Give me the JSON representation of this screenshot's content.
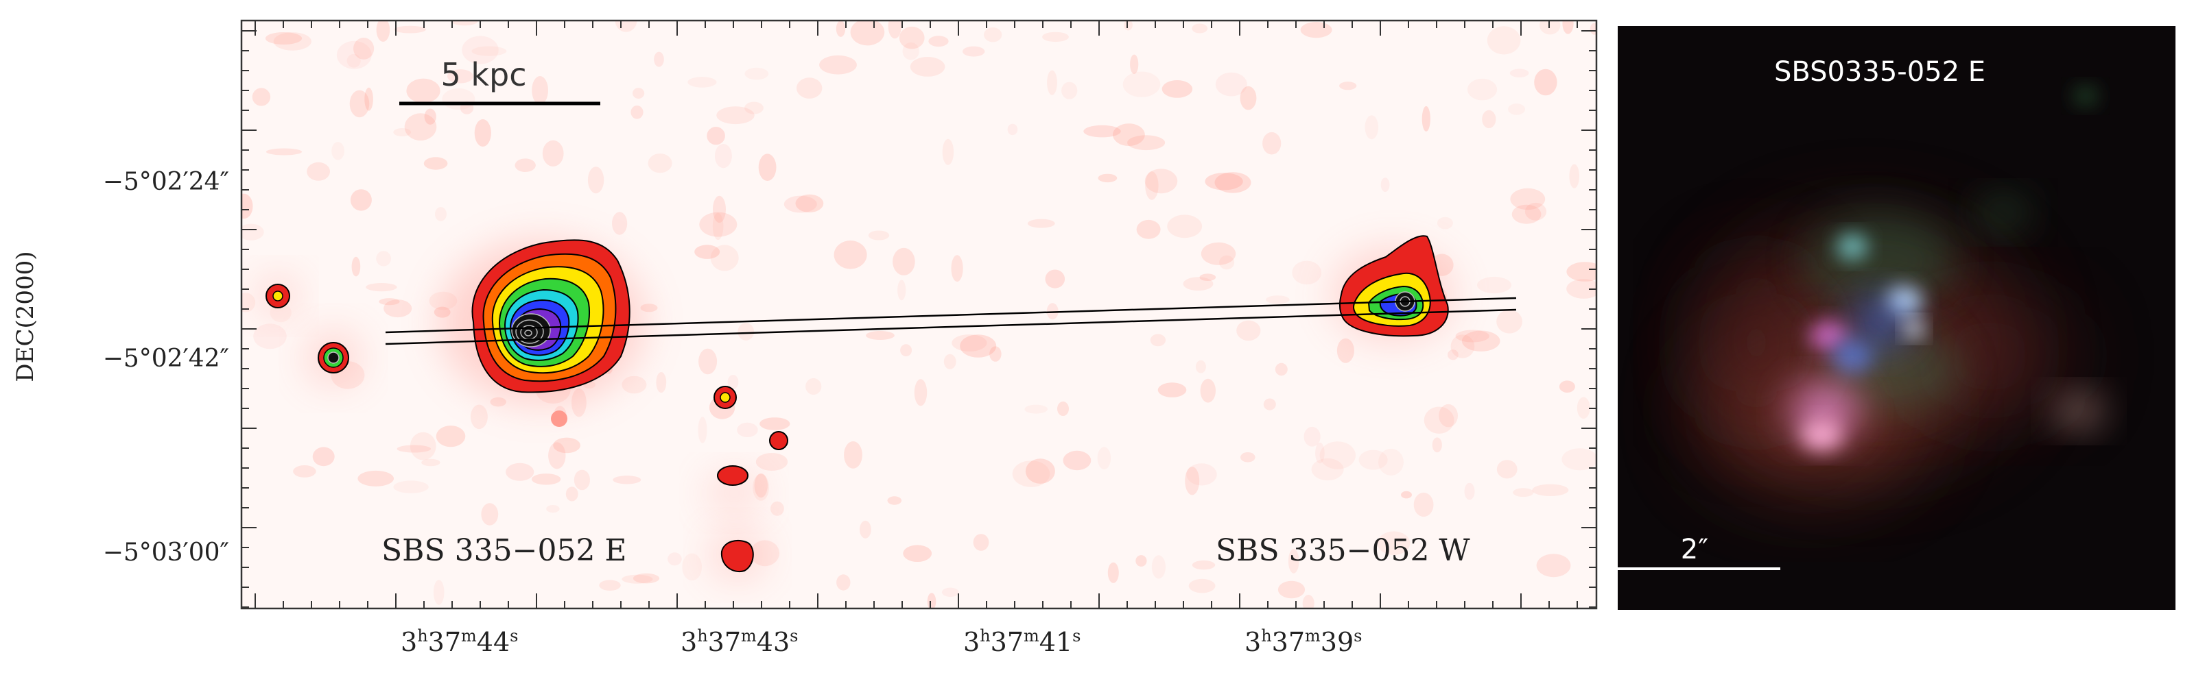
{
  "left_panel": {
    "scale_bar_label": "5 kpc",
    "y_axis_label": "DEC(2000)",
    "y_ticks": [
      "−5°02′24″",
      "−5°02′42″",
      "−5°03′00″"
    ],
    "x_ticks": [
      {
        "h": "3",
        "m": "37",
        "s": "44"
      },
      {
        "h": "3",
        "m": "37",
        "s": "43"
      },
      {
        "h": "3",
        "m": "37",
        "s": "41"
      },
      {
        "h": "3",
        "m": "37",
        "s": "39"
      }
    ],
    "label_east": "SBS 335−052 E",
    "label_west": "SBS 335−052 W",
    "colors": {
      "background": "#fff7f5",
      "noise": "#ff9a8e",
      "contour_lines": "#000000"
    }
  },
  "right_panel": {
    "title": "SBS0335-052 E",
    "scale_bar_label": "2″",
    "colors": {
      "background": "#0b0709",
      "text": "#ffffff"
    }
  }
}
